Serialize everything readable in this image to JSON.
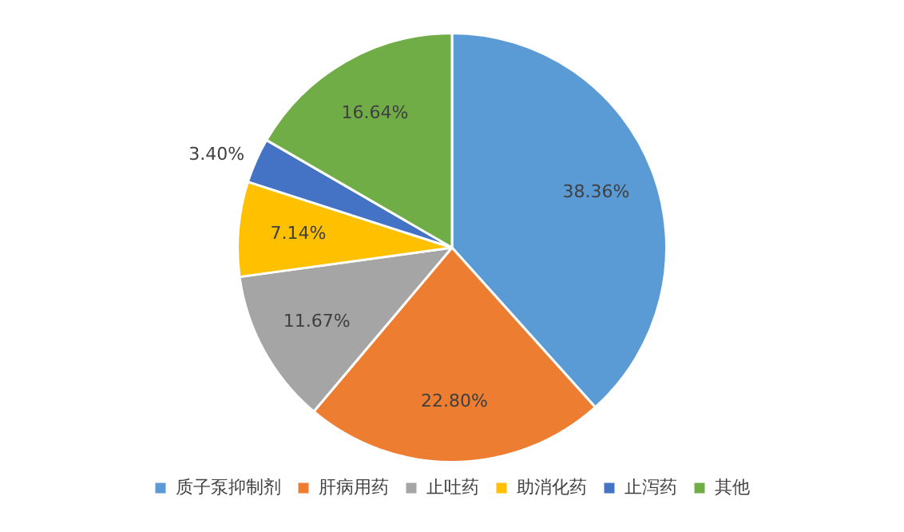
{
  "chart_data": {
    "type": "pie",
    "categories": [
      "质子泵抑制剂",
      "肝病用药",
      "止吐药",
      "助消化药",
      "止泻药",
      "其他"
    ],
    "values": [
      38.36,
      22.8,
      11.67,
      7.14,
      3.4,
      16.64
    ],
    "colors": [
      "#5b9bd5",
      "#ed7d31",
      "#a5a5a5",
      "#ffc000",
      "#4472c4",
      "#70ad47"
    ],
    "value_labels": [
      "38.36%",
      "22.80%",
      "11.67%",
      "7.14%",
      "3.40%",
      "16.64%"
    ],
    "legend": "bottom"
  }
}
